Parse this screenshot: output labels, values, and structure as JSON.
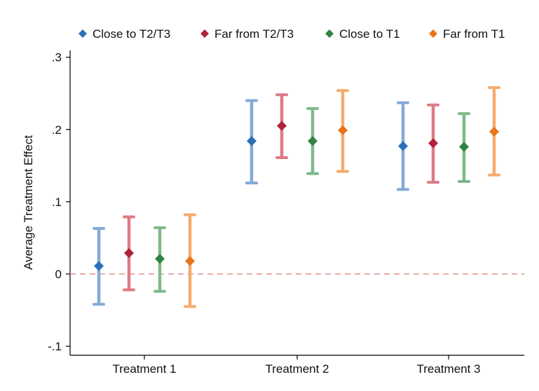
{
  "chart_data": {
    "type": "scatter",
    "title": "",
    "xlabel": "",
    "ylabel": "Average Treatment Effect",
    "ylim": [
      -0.105,
      0.305
    ],
    "yticks": [
      {
        "value": -0.1,
        "label": "-.1"
      },
      {
        "value": 0,
        "label": "0"
      },
      {
        "value": 0.1,
        "label": ".1"
      },
      {
        "value": 0.2,
        "label": ".2"
      },
      {
        "value": 0.3,
        "label": ".3"
      }
    ],
    "categories": [
      "Treatment 1",
      "Treatment 2",
      "Treatment 3"
    ],
    "reference_line": {
      "value": 0,
      "style": "dashed",
      "color": "#e8908f"
    },
    "grid": false,
    "legend_position": "top",
    "series": [
      {
        "name": "Close to T2/T3",
        "marker_color": "#2c6fb7",
        "bar_color": "#85a9d6",
        "points": [
          {
            "estimate": 0.011,
            "lower": -0.042,
            "upper": 0.063
          },
          {
            "estimate": 0.184,
            "lower": 0.126,
            "upper": 0.24
          },
          {
            "estimate": 0.177,
            "lower": 0.117,
            "upper": 0.237
          }
        ]
      },
      {
        "name": "Far from T2/T3",
        "marker_color": "#b22238",
        "bar_color": "#dd7a85",
        "points": [
          {
            "estimate": 0.029,
            "lower": -0.022,
            "upper": 0.079
          },
          {
            "estimate": 0.205,
            "lower": 0.161,
            "upper": 0.248
          },
          {
            "estimate": 0.181,
            "lower": 0.127,
            "upper": 0.234
          }
        ]
      },
      {
        "name": "Close to T1",
        "marker_color": "#2e8340",
        "bar_color": "#7fba8a",
        "points": [
          {
            "estimate": 0.021,
            "lower": -0.024,
            "upper": 0.064
          },
          {
            "estimate": 0.184,
            "lower": 0.139,
            "upper": 0.229
          },
          {
            "estimate": 0.176,
            "lower": 0.128,
            "upper": 0.222
          }
        ]
      },
      {
        "name": "Far from T1",
        "marker_color": "#e8741a",
        "bar_color": "#f4ac6e",
        "points": [
          {
            "estimate": 0.018,
            "lower": -0.045,
            "upper": 0.082
          },
          {
            "estimate": 0.199,
            "lower": 0.142,
            "upper": 0.254
          },
          {
            "estimate": 0.197,
            "lower": 0.137,
            "upper": 0.258
          }
        ]
      }
    ]
  }
}
